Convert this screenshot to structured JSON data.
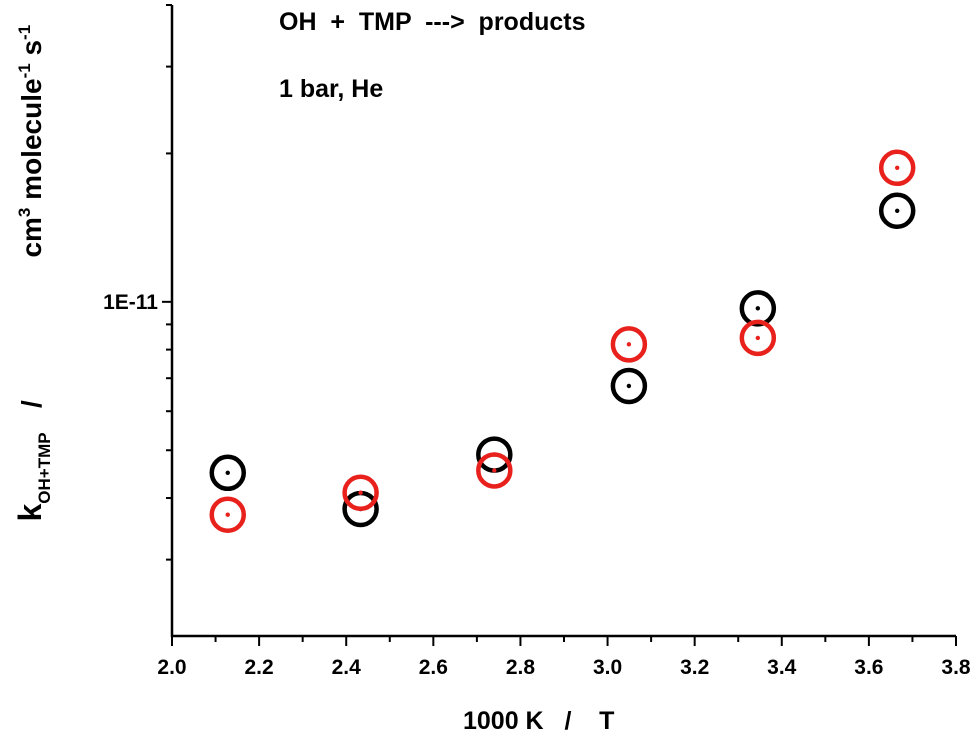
{
  "chart_data": {
    "type": "scatter",
    "title": "",
    "annotations": [
      "OH  +  TMP  --->  products",
      "1 bar, He"
    ],
    "xlabel": "1000 K   /    T",
    "ylabel": {
      "k": "k",
      "k_sub": "OH+TMP",
      "slash": "/",
      "units_cm": "cm",
      "units_cm_sup": "3",
      "units_molecule": " molecule",
      "units_molecule_sup": "-1",
      "units_s": " s",
      "units_s_sup": "-1"
    },
    "xlim": [
      2.0,
      3.8
    ],
    "xticks": [
      "2.0",
      "2.2",
      "2.4",
      "2.6",
      "2.8",
      "3.0",
      "3.2",
      "3.4",
      "3.6",
      "3.8"
    ],
    "yscale": "log",
    "ylim": [
      2.1e-12,
      4e-11
    ],
    "ytick_labels": [
      {
        "value": 1e-11,
        "label": "1E-11"
      }
    ],
    "grid": false,
    "legend": "none",
    "series": [
      {
        "color": "#000000",
        "marker": "open-circle-with-center-dot",
        "x": [
          2.128,
          2.433,
          2.74,
          3.049,
          3.345,
          3.665
        ],
        "y": [
          4.5e-12,
          3.8e-12,
          4.9e-12,
          6.75e-12,
          9.7e-12,
          1.53e-11
        ]
      },
      {
        "color": "#e8211d",
        "marker": "open-circle-with-center-dot",
        "x": [
          2.128,
          2.433,
          2.74,
          3.049,
          3.345,
          3.665
        ],
        "y": [
          3.7e-12,
          4.1e-12,
          4.55e-12,
          8.2e-12,
          8.45e-12,
          1.87e-11
        ]
      }
    ]
  }
}
